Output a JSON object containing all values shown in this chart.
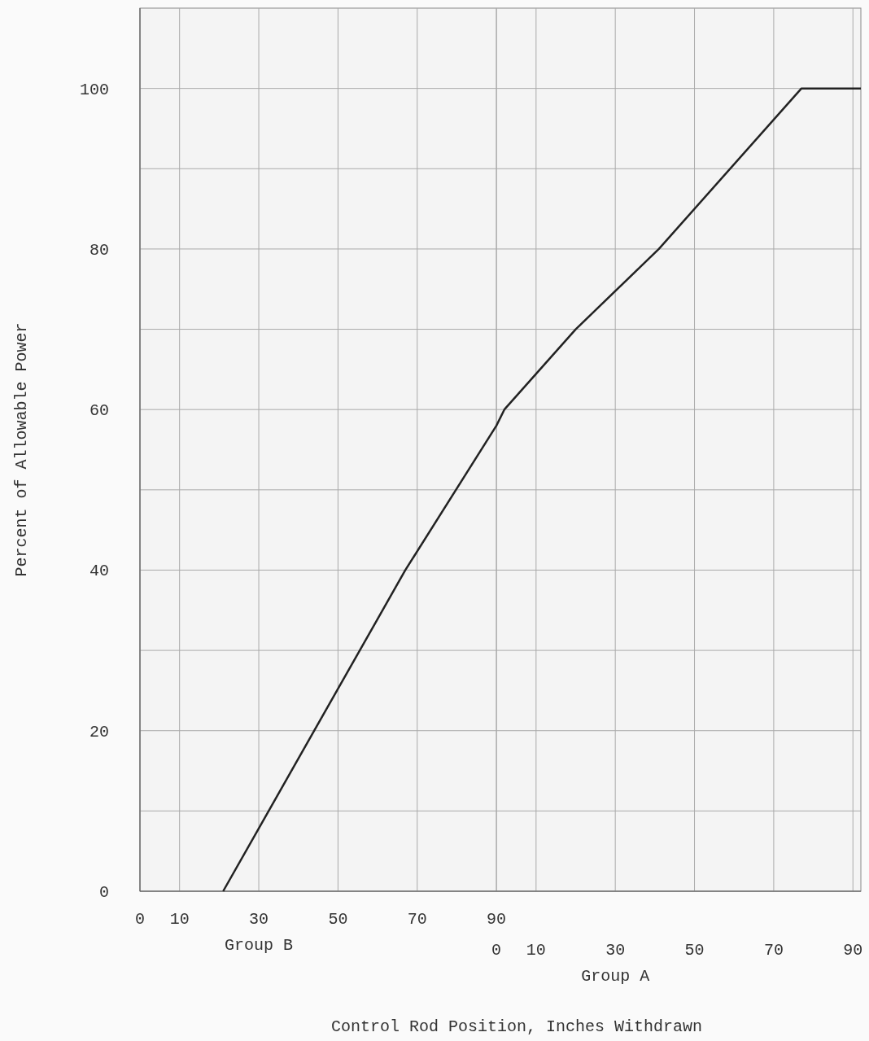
{
  "chart_data": {
    "type": "line",
    "xlabel": "Group B",
    "x2label": "Group A",
    "ylabel": "Percent of Allowable Power",
    "annotations": [
      "Control Rod Position, Inches Withdrawn"
    ],
    "xlim": [
      0,
      182
    ],
    "xticks": [
      0,
      10,
      30,
      50,
      70,
      90
    ],
    "x2lim": [
      -90,
      92
    ],
    "x2ticks": [
      0,
      10,
      30,
      50,
      70,
      90
    ],
    "ylim": [
      0,
      110
    ],
    "yticks": [
      0,
      {
        "value": 10,
        "label": null
      },
      20,
      {
        "value": 30,
        "label": null
      },
      40,
      {
        "value": 50,
        "label": null
      },
      60,
      {
        "value": 70,
        "label": null
      },
      80,
      {
        "value": 90,
        "label": null
      },
      100
    ],
    "grid": true,
    "marker": "none",
    "line_style": "solid",
    "series": [
      {
        "color": "#222222",
        "x": [
          21,
          44,
          67,
          90,
          92,
          110,
          131,
          167,
          182
        ],
        "values": [
          0,
          20,
          40,
          58,
          60,
          70,
          80,
          100,
          100
        ]
      }
    ]
  }
}
